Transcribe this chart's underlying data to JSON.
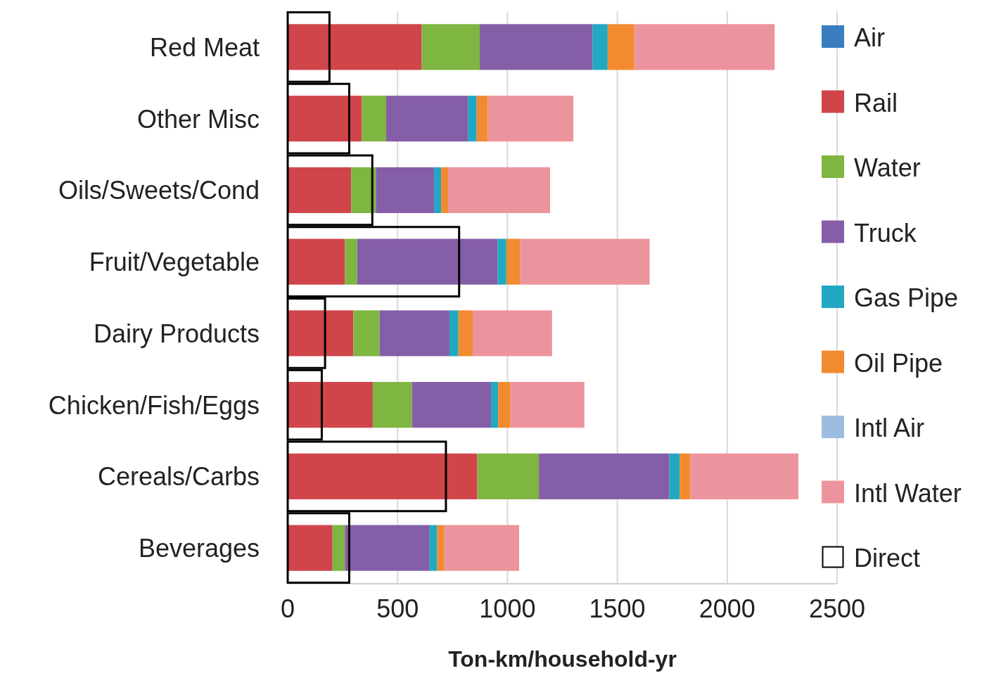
{
  "chart_data": [
    {
      "type": "bar",
      "orientation": "horizontal",
      "stacked": true,
      "xlabel": "Ton-km/household-yr",
      "categories": [
        "Red Meat",
        "Other Misc",
        "Oils/Sweets/Cond",
        "Fruit/Vegetable",
        "Dairy Products",
        "Chicken/Fish/Eggs",
        "Cereals/Carbs",
        "Beverages"
      ],
      "series": [
        {
          "name": "Air",
          "color": "#3a7dc0",
          "values": [
            0,
            0,
            0,
            0,
            0,
            0,
            0,
            0
          ]
        },
        {
          "name": "Rail",
          "color": "#d0454a",
          "values": [
            610,
            337,
            289,
            261,
            299,
            387,
            863,
            204
          ]
        },
        {
          "name": "Water",
          "color": "#7fb541",
          "values": [
            264,
            111,
            112,
            55,
            119,
            179,
            280,
            56
          ]
        },
        {
          "name": "Truck",
          "color": "#855ea8",
          "values": [
            514,
            372,
            265,
            639,
            318,
            359,
            594,
            386
          ]
        },
        {
          "name": "Gas Pipe",
          "color": "#22a8c2",
          "values": [
            68,
            40,
            32,
            40,
            41,
            33,
            47,
            34
          ]
        },
        {
          "name": "Oil Pipe",
          "color": "#f28a30",
          "values": [
            121,
            51,
            32,
            62,
            65,
            56,
            49,
            33
          ]
        },
        {
          "name": "Intl Air",
          "color": "#9dbde0",
          "values": [
            0,
            0,
            0,
            0,
            0,
            0,
            0,
            0
          ]
        },
        {
          "name": "Intl Water",
          "color": "#ec949d",
          "values": [
            639,
            389,
            464,
            590,
            361,
            336,
            491,
            340
          ]
        }
      ],
      "xlim": [
        0,
        2500
      ],
      "xticks": [
        0,
        500,
        1000,
        1500,
        2000,
        2500
      ],
      "grid": "x",
      "legend": "right"
    },
    {
      "type": "bar",
      "orientation": "horizontal",
      "categories": [
        null,
        null,
        null,
        null,
        null,
        null,
        null,
        null
      ],
      "series": [
        {
          "name": "Direct",
          "color": "#000000",
          "values": [
            190,
            280,
            385,
            780,
            170,
            155,
            720,
            280
          ]
        }
      ],
      "xlim": [
        0,
        2500
      ],
      "legend": "right"
    }
  ]
}
